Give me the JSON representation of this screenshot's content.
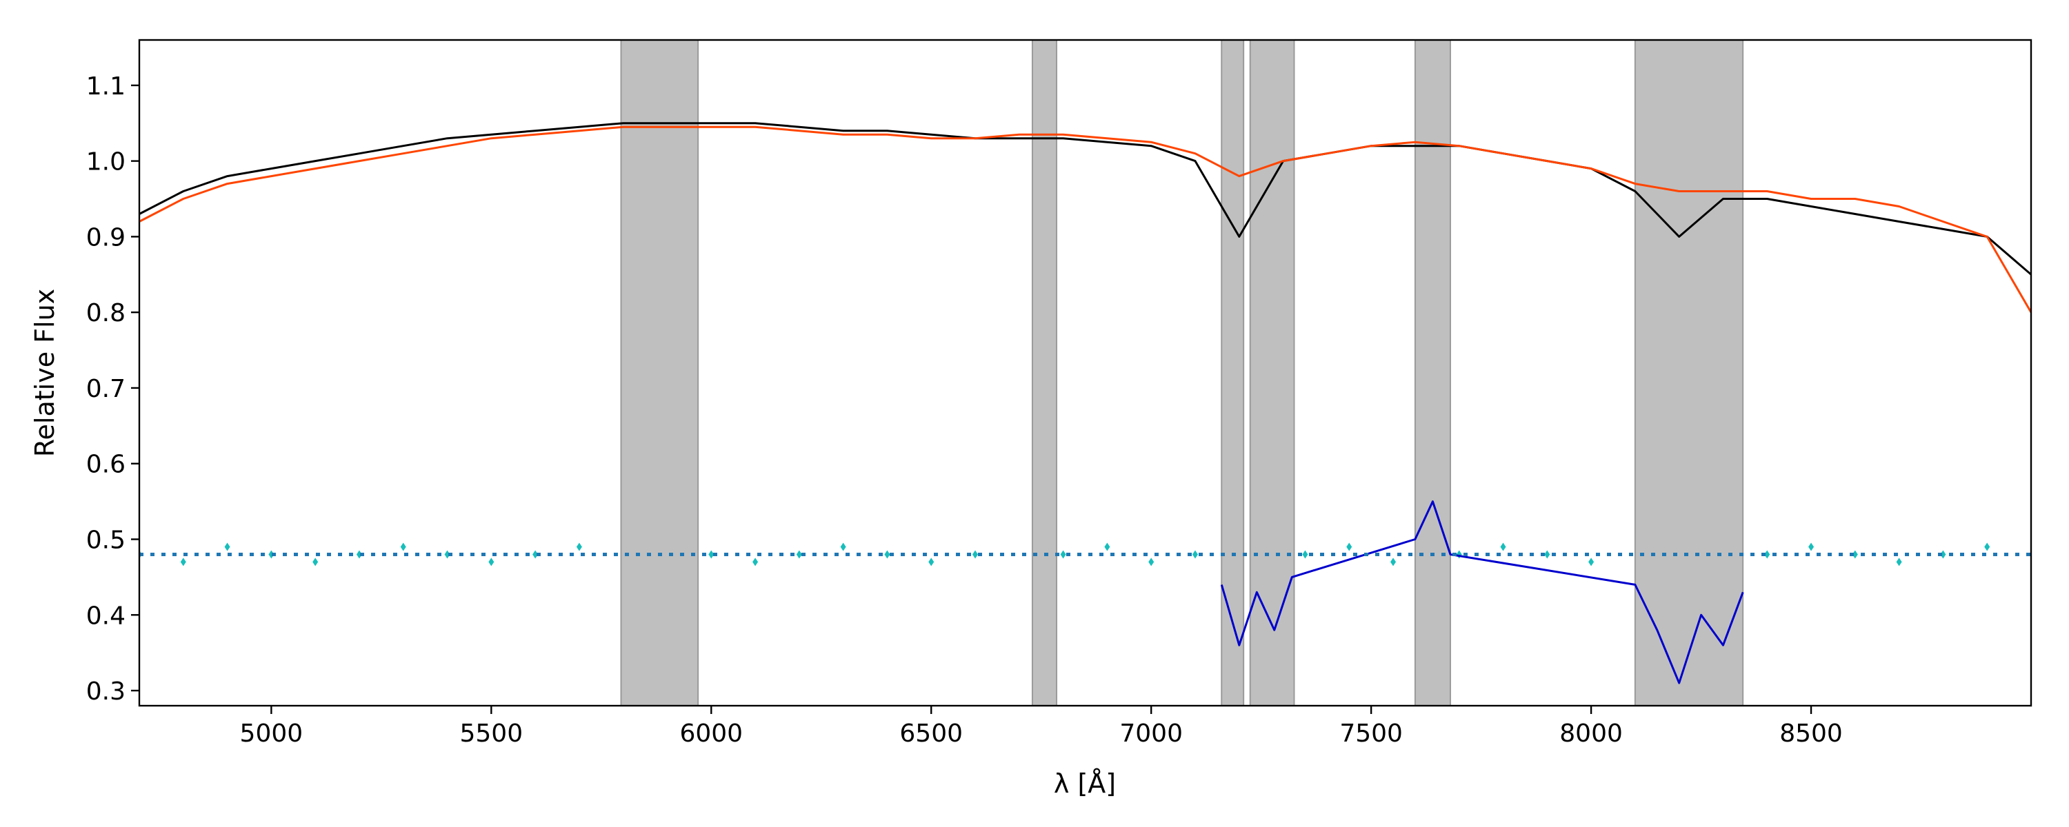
{
  "chart_data": {
    "type": "line",
    "title": "",
    "xlabel": "λ [Å]",
    "ylabel": "Relative Flux",
    "xlim": [
      4700,
      9000
    ],
    "ylim": [
      0.28,
      1.16
    ],
    "x_ticks": [
      5000,
      5500,
      6000,
      6500,
      7000,
      7500,
      8000,
      8500
    ],
    "x_tick_labels": [
      "5000",
      "5500",
      "6000",
      "6500",
      "7000",
      "7500",
      "8000",
      "8500"
    ],
    "y_ticks": [
      0.3,
      0.4,
      0.5,
      0.6,
      0.7,
      0.8,
      0.9,
      1.0,
      1.1
    ],
    "y_tick_labels": [
      "0.3",
      "0.4",
      "0.5",
      "0.6",
      "0.7",
      "0.8",
      "0.9",
      "1.0",
      "1.1"
    ],
    "grid": false,
    "legend": "none",
    "masked_regions": [
      [
        5795,
        5970
      ],
      [
        6730,
        6785
      ],
      [
        7160,
        7210
      ],
      [
        7225,
        7325
      ],
      [
        7600,
        7680
      ],
      [
        8100,
        8345
      ]
    ],
    "residual_offset": 0.48,
    "series": [
      {
        "style": "observed-spectrum",
        "color": "#000000",
        "x": [
          4700,
          4800,
          4900,
          5000,
          5100,
          5200,
          5300,
          5400,
          5500,
          5600,
          5700,
          5800,
          5900,
          6000,
          6100,
          6200,
          6300,
          6400,
          6500,
          6600,
          6700,
          6800,
          6900,
          7000,
          7100,
          7200,
          7300,
          7400,
          7500,
          7600,
          7700,
          7800,
          7900,
          8000,
          8100,
          8200,
          8300,
          8400,
          8500,
          8600,
          8700,
          8800,
          8900,
          9000
        ],
        "y": [
          0.93,
          0.96,
          0.98,
          0.99,
          1.0,
          1.01,
          1.02,
          1.03,
          1.035,
          1.04,
          1.045,
          1.05,
          1.05,
          1.05,
          1.05,
          1.045,
          1.04,
          1.04,
          1.035,
          1.03,
          1.03,
          1.03,
          1.025,
          1.02,
          1.0,
          0.9,
          1.0,
          1.01,
          1.02,
          1.02,
          1.02,
          1.01,
          1.0,
          0.99,
          0.96,
          0.9,
          0.95,
          0.95,
          0.94,
          0.93,
          0.92,
          0.91,
          0.9,
          0.85
        ]
      },
      {
        "style": "model-fit",
        "color": "#ff4500",
        "x": [
          4700,
          4800,
          4900,
          5000,
          5100,
          5200,
          5300,
          5400,
          5500,
          5600,
          5700,
          5800,
          5900,
          6000,
          6100,
          6200,
          6300,
          6400,
          6500,
          6600,
          6700,
          6800,
          6900,
          7000,
          7100,
          7200,
          7300,
          7400,
          7500,
          7600,
          7700,
          7800,
          7900,
          8000,
          8100,
          8200,
          8300,
          8400,
          8500,
          8600,
          8700,
          8800,
          8900,
          9000
        ],
        "y": [
          0.92,
          0.95,
          0.97,
          0.98,
          0.99,
          1.0,
          1.01,
          1.02,
          1.03,
          1.035,
          1.04,
          1.045,
          1.045,
          1.045,
          1.045,
          1.04,
          1.035,
          1.035,
          1.03,
          1.03,
          1.035,
          1.035,
          1.03,
          1.025,
          1.01,
          0.98,
          1.0,
          1.01,
          1.02,
          1.025,
          1.02,
          1.01,
          1.0,
          0.99,
          0.97,
          0.96,
          0.96,
          0.96,
          0.95,
          0.95,
          0.94,
          0.92,
          0.9,
          0.8
        ]
      },
      {
        "style": "residuals-scatter",
        "color": "#17bebb",
        "x": [
          4700,
          4800,
          4900,
          5000,
          5100,
          5200,
          5300,
          5400,
          5500,
          5600,
          5700,
          6000,
          6100,
          6200,
          6300,
          6400,
          6500,
          6600,
          6800,
          6900,
          7000,
          7100,
          7350,
          7450,
          7550,
          7700,
          7800,
          7900,
          8000,
          8400,
          8500,
          8600,
          8700,
          8800,
          8900
        ],
        "y": [
          0.48,
          0.47,
          0.49,
          0.48,
          0.47,
          0.48,
          0.49,
          0.48,
          0.47,
          0.48,
          0.49,
          0.48,
          0.47,
          0.48,
          0.49,
          0.48,
          0.47,
          0.48,
          0.48,
          0.49,
          0.47,
          0.48,
          0.48,
          0.49,
          0.47,
          0.48,
          0.49,
          0.48,
          0.47,
          0.48,
          0.49,
          0.48,
          0.47,
          0.48,
          0.49
        ]
      },
      {
        "style": "residuals-masked",
        "color": "#0000cd",
        "x": [
          7160,
          7200,
          7240,
          7280,
          7320,
          7600,
          7640,
          7680,
          8100,
          8150,
          8200,
          8250,
          8300,
          8345
        ],
        "y": [
          0.44,
          0.36,
          0.43,
          0.38,
          0.45,
          0.5,
          0.55,
          0.48,
          0.44,
          0.38,
          0.31,
          0.4,
          0.36,
          0.43
        ]
      },
      {
        "style": "zero-line",
        "color": "#1f77b4",
        "x": [
          4700,
          9000
        ],
        "y": [
          0.48,
          0.48
        ]
      }
    ]
  }
}
